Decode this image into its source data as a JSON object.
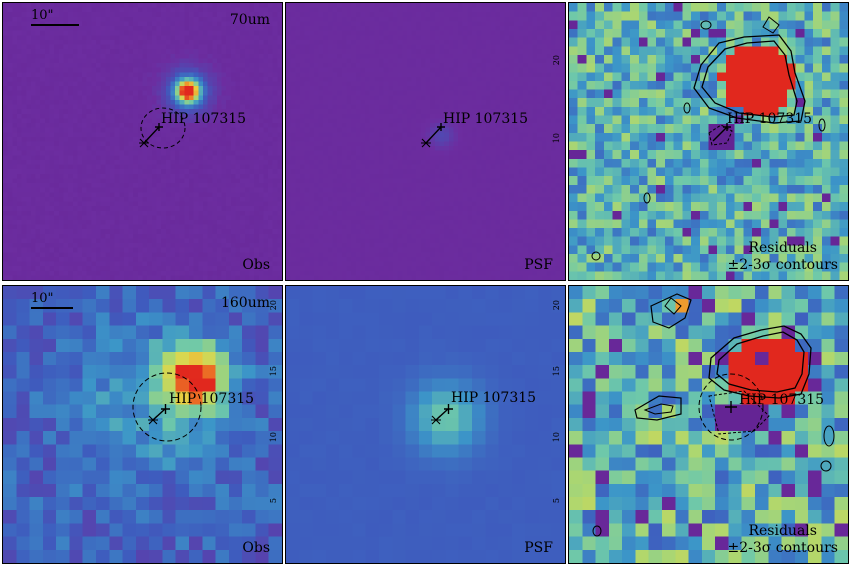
{
  "target_name": "HIP 107315",
  "scale_bar_label": "10\"",
  "rows": [
    {
      "wavelength": "70um",
      "panels": {
        "obs": {
          "label": "Obs"
        },
        "psf": {
          "label": "PSF"
        },
        "residuals": {
          "label_line1": "Residuals",
          "label_line2": "±2-3σ contours"
        }
      }
    },
    {
      "wavelength": "160um",
      "panels": {
        "obs": {
          "label": "Obs"
        },
        "psf": {
          "label": "PSF"
        },
        "residuals": {
          "label_line1": "Residuals",
          "label_line2": "±2-3σ contours"
        }
      }
    }
  ],
  "axis_ticks": {
    "top_row": [
      "20",
      "10"
    ],
    "bottom_row": [
      "20",
      "15",
      "10",
      "5"
    ]
  },
  "colors": {
    "background_70_obs": "#6b2b9a",
    "background_70_psf": "#6a2a96",
    "background_160_obs": "#3d5fb0",
    "background_160_psf": "#3f5aa8",
    "peak": "#e02a20",
    "residual_mid": "#7fbfa0"
  }
}
